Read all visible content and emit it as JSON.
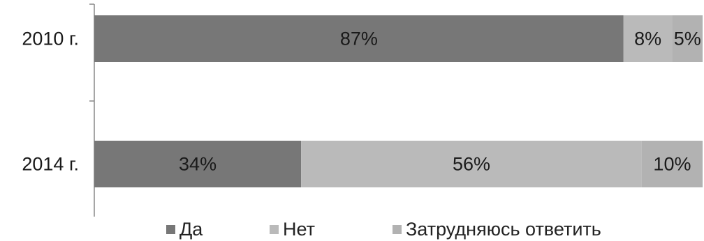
{
  "chart_data": {
    "type": "bar",
    "orientation": "horizontal",
    "stacked": true,
    "percent": true,
    "categories": [
      "2010 г.",
      "2014 г."
    ],
    "series": [
      {
        "name": "Да",
        "values": [
          87,
          34
        ],
        "labels": [
          "87%",
          "34%"
        ],
        "color": "#777777"
      },
      {
        "name": "Нет",
        "values": [
          8,
          56
        ],
        "labels": [
          "8%",
          "56%"
        ],
        "color": "#bababa"
      },
      {
        "name": "Затрудняюсь ответить",
        "values": [
          5,
          10
        ],
        "labels": [
          "5%",
          "10%"
        ],
        "color": "#b2b2b2"
      }
    ],
    "xlim": [
      0,
      100
    ],
    "grid": false,
    "legend_position": "bottom"
  }
}
